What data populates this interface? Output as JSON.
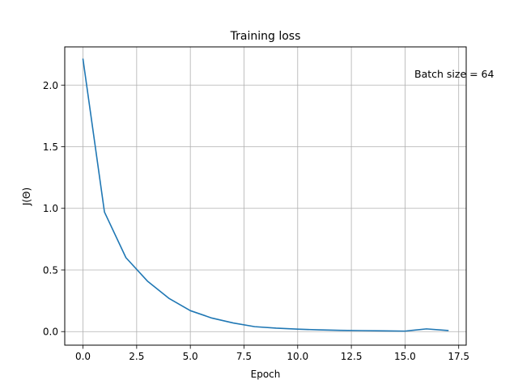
{
  "chart_data": {
    "type": "line",
    "title": "Training loss",
    "xlabel": "Epoch",
    "ylabel": "J(Θ)",
    "annotation": "Batch size = 64",
    "xlim": [
      -0.85,
      17.85
    ],
    "ylim": [
      -0.11,
      2.31
    ],
    "xticks": [
      0.0,
      2.5,
      5.0,
      7.5,
      10.0,
      12.5,
      15.0,
      17.5
    ],
    "xtick_labels": [
      "0.0",
      "2.5",
      "5.0",
      "7.5",
      "10.0",
      "12.5",
      "15.0",
      "17.5"
    ],
    "yticks": [
      0.0,
      0.5,
      1.0,
      1.5,
      2.0
    ],
    "ytick_labels": [
      "0.0",
      "0.5",
      "1.0",
      "1.5",
      "2.0"
    ],
    "grid": true,
    "series": [
      {
        "color": "#1f77b4",
        "x": [
          0,
          1,
          2,
          3,
          4,
          5,
          6,
          7,
          8,
          9,
          10,
          11,
          12,
          13,
          14,
          15,
          16,
          17
        ],
        "y": [
          2.21,
          0.97,
          0.6,
          0.41,
          0.27,
          0.17,
          0.11,
          0.07,
          0.04,
          0.028,
          0.02,
          0.014,
          0.01,
          0.008,
          0.006,
          0.004,
          0.022,
          0.009
        ]
      }
    ]
  }
}
